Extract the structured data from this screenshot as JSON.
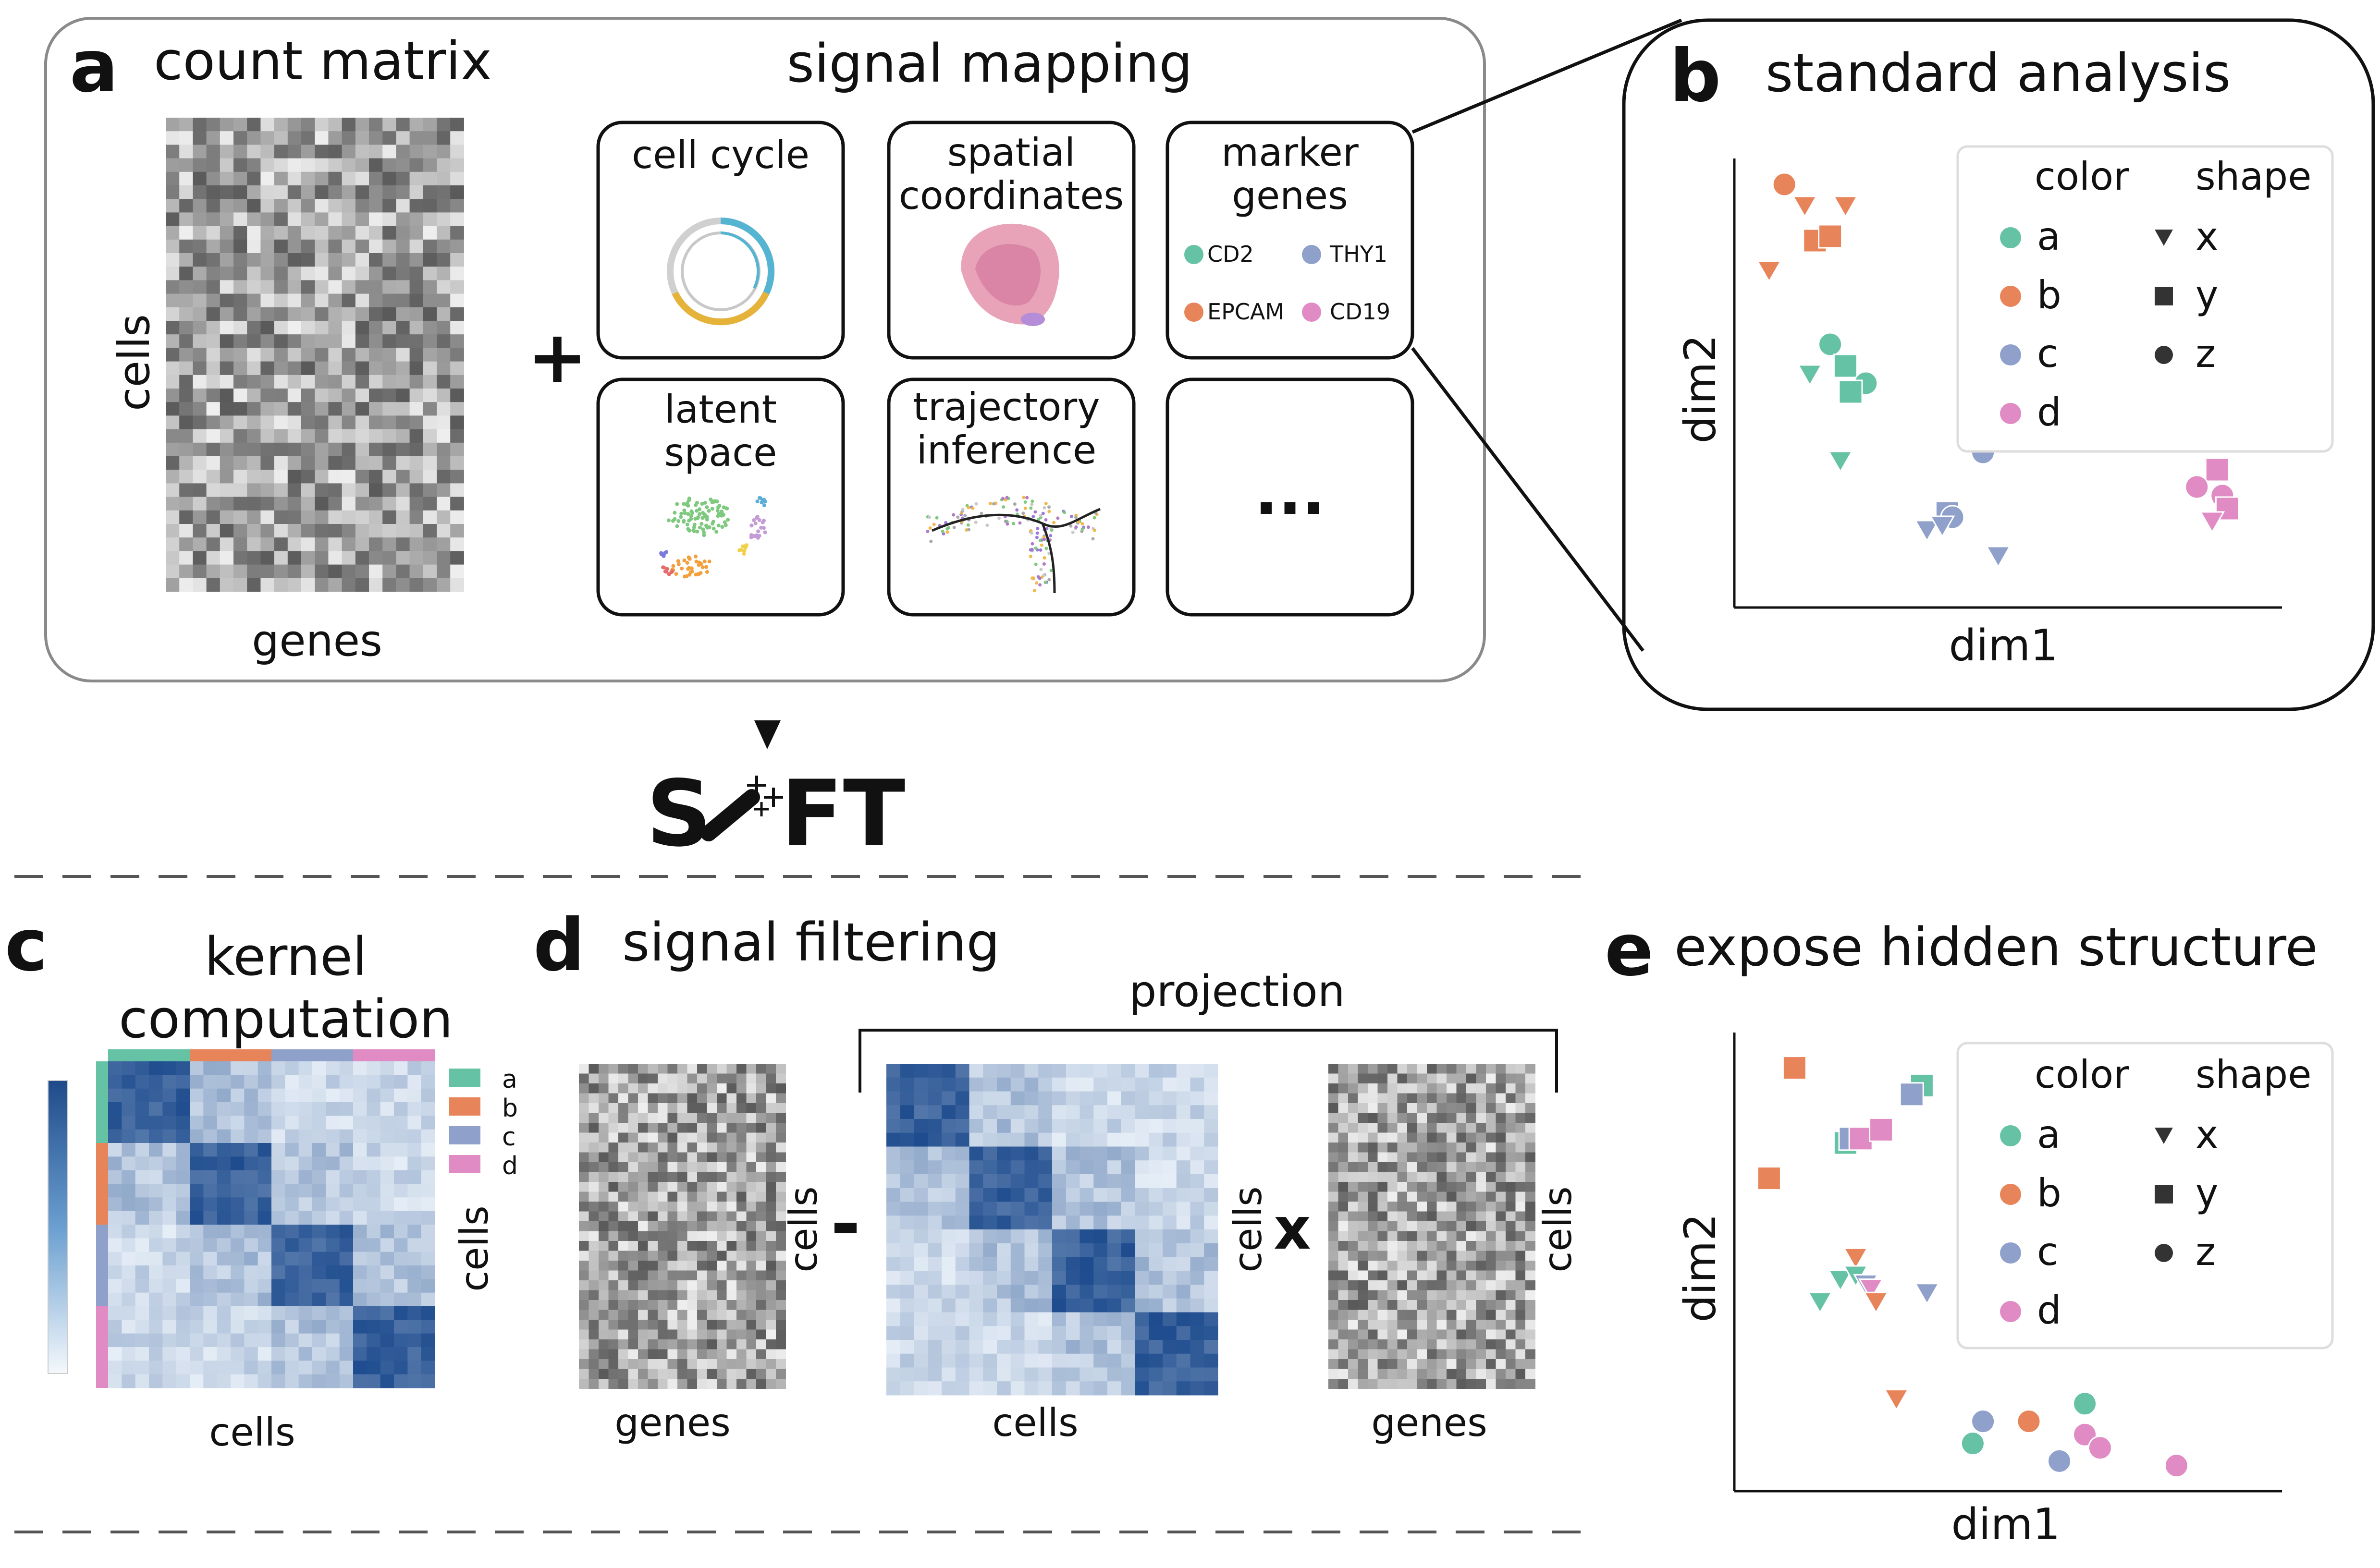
{
  "colors": {
    "a": "#66c2a5",
    "b": "#e8845a",
    "c": "#8fa0cb",
    "d": "#e08bc3",
    "panel_a_border": "#8a8a8a",
    "kernel_dark": "#1f4a8a",
    "kernel_light": "#eef4fb"
  },
  "panel_a": {
    "letter": "a",
    "count_title": "count matrix",
    "ylabel": "cells",
    "xlabel": "genes",
    "plus": "+",
    "signal_title": "signal mapping",
    "tiles": [
      {
        "label1": "cell cycle",
        "label2": ""
      },
      {
        "label1": "spatial",
        "label2": "coordinates"
      },
      {
        "label1": "marker",
        "label2": "genes"
      },
      {
        "label1": "latent",
        "label2": "space"
      },
      {
        "label1": "trajectory",
        "label2": "inference"
      },
      {
        "label1": "...",
        "label2": ""
      }
    ],
    "marker_genes": [
      {
        "name": "CD2",
        "color": "#66c2a5"
      },
      {
        "name": "THY1",
        "color": "#8fa0cb"
      },
      {
        "name": "EPCAM",
        "color": "#e8845a"
      },
      {
        "name": "CD19",
        "color": "#e08bc3"
      }
    ]
  },
  "logo": {
    "left": "S",
    "right": "FT",
    "icon": "magic-wand-icon"
  },
  "panel_b": {
    "letter": "b",
    "title": "standard analysis",
    "xlabel": "dim1",
    "ylabel": "dim2"
  },
  "panel_c": {
    "letter": "c",
    "title1": "kernel",
    "title2": "computation",
    "ylabel": "cells",
    "xlabel": "cells",
    "legend": [
      "a",
      "b",
      "c",
      "d"
    ]
  },
  "panel_d": {
    "letter": "d",
    "title": "signal filtering",
    "projection_label": "projection",
    "minus": "-",
    "times": "x",
    "m1_xlabel": "genes",
    "m1_ylabel": "cells",
    "k_xlabel": "cells",
    "k_ylabel": "cells",
    "m2_xlabel": "genes",
    "m2_ylabel": "cells"
  },
  "panel_e": {
    "letter": "e",
    "title": "expose hidden structure",
    "xlabel": "dim1",
    "ylabel": "dim2"
  },
  "legend": {
    "color_title": "color",
    "shape_title": "shape",
    "color_items": [
      "a",
      "b",
      "c",
      "d"
    ],
    "shape_items": [
      "x",
      "y",
      "z"
    ]
  },
  "chart_data": [
    {
      "type": "scatter",
      "panel": "b",
      "xlabel": "dim1",
      "ylabel": "dim2",
      "xlim": [
        0,
        10
      ],
      "ylim": [
        0,
        10
      ],
      "legend_position": "top-right",
      "points": [
        {
          "x": 0.7,
          "y": 9.4,
          "color": "b",
          "shape": "z"
        },
        {
          "x": 1.1,
          "y": 8.9,
          "color": "b",
          "shape": "x"
        },
        {
          "x": 1.9,
          "y": 8.9,
          "color": "b",
          "shape": "x"
        },
        {
          "x": 1.3,
          "y": 8.1,
          "color": "b",
          "shape": "y"
        },
        {
          "x": 1.6,
          "y": 8.2,
          "color": "b",
          "shape": "y"
        },
        {
          "x": 0.4,
          "y": 7.4,
          "color": "b",
          "shape": "x"
        },
        {
          "x": 1.6,
          "y": 5.7,
          "color": "a",
          "shape": "z"
        },
        {
          "x": 1.9,
          "y": 5.2,
          "color": "a",
          "shape": "y"
        },
        {
          "x": 2.3,
          "y": 4.8,
          "color": "a",
          "shape": "z"
        },
        {
          "x": 1.2,
          "y": 5.0,
          "color": "a",
          "shape": "x"
        },
        {
          "x": 2.0,
          "y": 4.6,
          "color": "a",
          "shape": "y"
        },
        {
          "x": 1.8,
          "y": 3.0,
          "color": "a",
          "shape": "x"
        },
        {
          "x": 3.9,
          "y": 1.8,
          "color": "c",
          "shape": "y"
        },
        {
          "x": 4.0,
          "y": 1.7,
          "color": "c",
          "shape": "z"
        },
        {
          "x": 4.6,
          "y": 3.2,
          "color": "c",
          "shape": "z"
        },
        {
          "x": 3.5,
          "y": 1.4,
          "color": "c",
          "shape": "x"
        },
        {
          "x": 3.8,
          "y": 1.5,
          "color": "c",
          "shape": "x"
        },
        {
          "x": 4.9,
          "y": 0.8,
          "color": "c",
          "shape": "x"
        },
        {
          "x": 9.2,
          "y": 2.8,
          "color": "d",
          "shape": "y"
        },
        {
          "x": 9.3,
          "y": 2.2,
          "color": "d",
          "shape": "z"
        },
        {
          "x": 9.4,
          "y": 1.9,
          "color": "d",
          "shape": "y"
        },
        {
          "x": 8.8,
          "y": 2.4,
          "color": "d",
          "shape": "z"
        },
        {
          "x": 9.1,
          "y": 1.6,
          "color": "d",
          "shape": "x"
        }
      ]
    },
    {
      "type": "scatter",
      "panel": "e",
      "xlabel": "dim1",
      "ylabel": "dim2",
      "xlim": [
        0,
        10
      ],
      "ylim": [
        0,
        10
      ],
      "legend_position": "top-right",
      "points": [
        {
          "x": 0.9,
          "y": 9.2,
          "color": "b",
          "shape": "y"
        },
        {
          "x": 0.4,
          "y": 6.7,
          "color": "b",
          "shape": "y"
        },
        {
          "x": 3.4,
          "y": 8.8,
          "color": "a",
          "shape": "y"
        },
        {
          "x": 3.2,
          "y": 8.6,
          "color": "c",
          "shape": "y"
        },
        {
          "x": 1.9,
          "y": 7.5,
          "color": "a",
          "shape": "y"
        },
        {
          "x": 2.0,
          "y": 7.6,
          "color": "c",
          "shape": "y"
        },
        {
          "x": 2.2,
          "y": 7.6,
          "color": "d",
          "shape": "y"
        },
        {
          "x": 2.6,
          "y": 7.8,
          "color": "d",
          "shape": "y"
        },
        {
          "x": 2.1,
          "y": 4.9,
          "color": "b",
          "shape": "x"
        },
        {
          "x": 1.8,
          "y": 4.4,
          "color": "a",
          "shape": "x"
        },
        {
          "x": 2.1,
          "y": 4.5,
          "color": "a",
          "shape": "x"
        },
        {
          "x": 2.3,
          "y": 4.3,
          "color": "c",
          "shape": "x"
        },
        {
          "x": 2.4,
          "y": 4.2,
          "color": "d",
          "shape": "x"
        },
        {
          "x": 1.4,
          "y": 3.9,
          "color": "a",
          "shape": "x"
        },
        {
          "x": 3.5,
          "y": 4.1,
          "color": "c",
          "shape": "x"
        },
        {
          "x": 2.5,
          "y": 3.9,
          "color": "b",
          "shape": "x"
        },
        {
          "x": 2.9,
          "y": 1.7,
          "color": "b",
          "shape": "x"
        },
        {
          "x": 4.4,
          "y": 0.7,
          "color": "a",
          "shape": "z"
        },
        {
          "x": 4.6,
          "y": 1.2,
          "color": "c",
          "shape": "z"
        },
        {
          "x": 5.5,
          "y": 1.2,
          "color": "b",
          "shape": "z"
        },
        {
          "x": 6.6,
          "y": 1.6,
          "color": "a",
          "shape": "z"
        },
        {
          "x": 6.6,
          "y": 0.9,
          "color": "d",
          "shape": "z"
        },
        {
          "x": 6.1,
          "y": 0.3,
          "color": "c",
          "shape": "z"
        },
        {
          "x": 6.9,
          "y": 0.6,
          "color": "d",
          "shape": "z"
        },
        {
          "x": 8.4,
          "y": 0.2,
          "color": "d",
          "shape": "z"
        }
      ]
    }
  ]
}
